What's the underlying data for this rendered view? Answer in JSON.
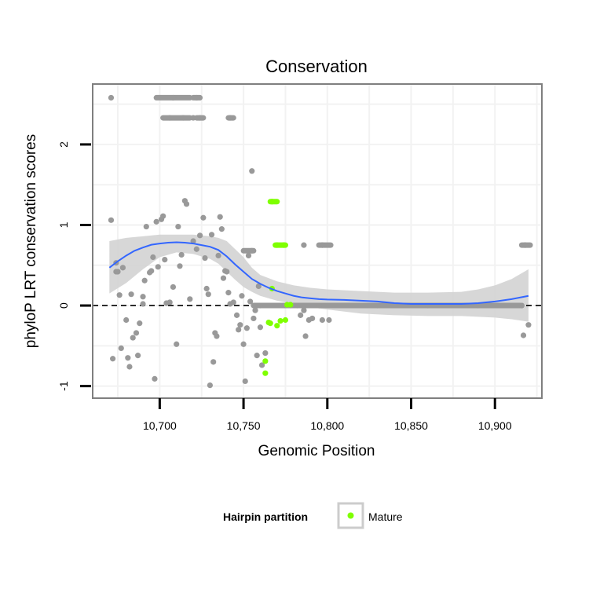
{
  "chart_data": {
    "type": "scatter",
    "title": "Conservation",
    "xlabel": "Genomic Position",
    "ylabel": "phyloP LRT conservation scores",
    "xlim": [
      10660,
      10928
    ],
    "ylim": [
      -1.15,
      2.75
    ],
    "x_ticks": [
      10700,
      10750,
      10800,
      10850,
      10900
    ],
    "x_tick_labels": [
      "10,700",
      "10,750",
      "10,800",
      "10,850",
      "10,900"
    ],
    "y_ticks": [
      -1,
      0,
      1,
      2
    ],
    "y_tick_labels": [
      "-1",
      "0",
      "1",
      "2"
    ],
    "reference_line_y": 0,
    "legend": {
      "title": "Hairpin partition",
      "entries": [
        {
          "label": "Mature",
          "color": "#7fff00"
        }
      ]
    },
    "colors": {
      "other": "#999999",
      "mature": "#7fff00",
      "smooth": "#3366ff",
      "band": "#d3d3d3",
      "panel_border": "#7f7f7f",
      "grid": "#f2f2f2"
    },
    "series": [
      {
        "name": "Other",
        "points": [
          [
            10671,
            2.58
          ],
          [
            10671,
            1.06
          ],
          [
            10672,
            -0.66
          ],
          [
            10674,
            0.53
          ],
          [
            10675,
            0.42
          ],
          [
            10674,
            0.42
          ],
          [
            10676,
            0.13
          ],
          [
            10677,
            -0.53
          ],
          [
            10678,
            0.47
          ],
          [
            10680,
            -0.18
          ],
          [
            10681,
            -0.65
          ],
          [
            10682,
            -0.76
          ],
          [
            10683,
            0.14
          ],
          [
            10684,
            -0.4
          ],
          [
            10686,
            -0.34
          ],
          [
            10687,
            -0.62
          ],
          [
            10688,
            -0.22
          ],
          [
            10690,
            0.02
          ],
          [
            10690,
            0.11
          ],
          [
            10691,
            0.31
          ],
          [
            10692,
            0.98
          ],
          [
            10694,
            0.41
          ],
          [
            10695,
            0.43
          ],
          [
            10696,
            0.6
          ],
          [
            10697,
            -0.91
          ],
          [
            10698,
            1.04
          ],
          [
            10699,
            0.48
          ],
          [
            10701,
            1.07
          ],
          [
            10702,
            1.11
          ],
          [
            10703,
            0.57
          ],
          [
            10704,
            0.03
          ],
          [
            10706,
            0.04
          ],
          [
            10708,
            0.23
          ],
          [
            10710,
            -0.48
          ],
          [
            10711,
            0.98
          ],
          [
            10712,
            0.49
          ],
          [
            10713,
            0.63
          ],
          [
            10715,
            1.3
          ],
          [
            10716,
            1.26
          ],
          [
            10718,
            0.08
          ],
          [
            10720,
            0.8
          ],
          [
            10722,
            0.7
          ],
          [
            10724,
            0.87
          ],
          [
            10726,
            1.09
          ],
          [
            10727,
            0.59
          ],
          [
            10728,
            0.21
          ],
          [
            10729,
            0.14
          ],
          [
            10730,
            -0.99
          ],
          [
            10731,
            0.88
          ],
          [
            10732,
            -0.7
          ],
          [
            10733,
            -0.34
          ],
          [
            10734,
            -0.38
          ],
          [
            10735,
            0.62
          ],
          [
            10736,
            1.1
          ],
          [
            10737,
            0.95
          ],
          [
            10738,
            0.34
          ],
          [
            10739,
            0.43
          ],
          [
            10740,
            0.42
          ],
          [
            10741,
            0.16
          ],
          [
            10742,
            0.02
          ],
          [
            10744,
            0.04
          ],
          [
            10746,
            -0.12
          ],
          [
            10747,
            -0.3
          ],
          [
            10748,
            -0.24
          ],
          [
            10749,
            0.12
          ],
          [
            10750,
            -0.48
          ],
          [
            10751,
            -0.94
          ],
          [
            10752,
            -0.28
          ],
          [
            10753,
            0.62
          ],
          [
            10754,
            0.05
          ],
          [
            10755,
            1.67
          ],
          [
            10756,
            -0.16
          ],
          [
            10757,
            -0.06
          ],
          [
            10758,
            -0.62
          ],
          [
            10759,
            0.24
          ],
          [
            10760,
            -0.27
          ],
          [
            10761,
            -0.74
          ],
          [
            10763,
            -0.59
          ],
          [
            10782,
            0.0
          ],
          [
            10784,
            -0.12
          ],
          [
            10786,
            -0.06
          ],
          [
            10787,
            -0.38
          ],
          [
            10789,
            -0.18
          ],
          [
            10791,
            -0.16
          ],
          [
            10795,
            0.0
          ],
          [
            10797,
            -0.18
          ],
          [
            10801,
            -0.18
          ],
          [
            10916,
            0.0
          ],
          [
            10917,
            -0.37
          ],
          [
            10920,
            -0.24
          ],
          [
            10708,
            2.58
          ],
          [
            10722,
            2.58
          ],
          [
            10706,
            2.33
          ],
          [
            10714,
            2.33
          ],
          [
            10720,
            2.33
          ],
          [
            10724,
            2.33
          ],
          [
            10742,
            2.33
          ],
          [
            10755,
            0.68
          ],
          [
            10786,
            0.75
          ],
          [
            10797,
            0.75
          ],
          [
            10918,
            0.75
          ],
          [
            10760,
            0.0
          ],
          [
            10778,
            0.0
          ],
          [
            10830,
            0.0
          ],
          [
            10860,
            0.0
          ],
          [
            10890,
            0.0
          ]
        ]
      },
      {
        "name": "Mature",
        "points": [
          [
            10763,
            -0.69
          ],
          [
            10763,
            -0.84
          ],
          [
            10765,
            -0.21
          ],
          [
            10766,
            -0.22
          ],
          [
            10767,
            0.21
          ],
          [
            10770,
            -0.25
          ],
          [
            10772,
            -0.19
          ],
          [
            10775,
            -0.18
          ],
          [
            10776,
            0.01
          ],
          [
            10778,
            0.01
          ],
          [
            10767,
            1.29
          ],
          [
            10770,
            0.75
          ],
          [
            10774,
            0.75
          ]
        ]
      },
      {
        "name": "Other runs",
        "runs": [
          {
            "x1": 10698,
            "x2": 10718,
            "y": 2.58
          },
          {
            "x1": 10720,
            "x2": 10724,
            "y": 2.58
          },
          {
            "x1": 10702,
            "x2": 10718,
            "y": 2.33
          },
          {
            "x1": 10722,
            "x2": 10726,
            "y": 2.33
          },
          {
            "x1": 10741,
            "x2": 10744,
            "y": 2.33
          },
          {
            "x1": 10750,
            "x2": 10756,
            "y": 0.68
          },
          {
            "x1": 10795,
            "x2": 10802,
            "y": 0.75
          },
          {
            "x1": 10916,
            "x2": 10921,
            "y": 0.75
          },
          {
            "x1": 10756,
            "x2": 10915,
            "y": 0.0
          }
        ]
      },
      {
        "name": "Mature runs",
        "runs": [
          {
            "x1": 10766,
            "x2": 10770,
            "y": 1.29
          },
          {
            "x1": 10769,
            "x2": 10775,
            "y": 0.75
          }
        ]
      },
      {
        "name": "Smooth fit",
        "line": [
          [
            10670,
            0.47
          ],
          [
            10675,
            0.55
          ],
          [
            10680,
            0.62
          ],
          [
            10685,
            0.68
          ],
          [
            10690,
            0.72
          ],
          [
            10695,
            0.755
          ],
          [
            10700,
            0.77
          ],
          [
            10705,
            0.78
          ],
          [
            10710,
            0.785
          ],
          [
            10715,
            0.78
          ],
          [
            10720,
            0.77
          ],
          [
            10725,
            0.75
          ],
          [
            10730,
            0.73
          ],
          [
            10735,
            0.69
          ],
          [
            10740,
            0.61
          ],
          [
            10745,
            0.51
          ],
          [
            10750,
            0.42
          ],
          [
            10755,
            0.33
          ],
          [
            10760,
            0.27
          ],
          [
            10765,
            0.22
          ],
          [
            10770,
            0.18
          ],
          [
            10775,
            0.15
          ],
          [
            10780,
            0.12
          ],
          [
            10785,
            0.1
          ],
          [
            10790,
            0.09
          ],
          [
            10795,
            0.08
          ],
          [
            10800,
            0.075
          ],
          [
            10810,
            0.07
          ],
          [
            10820,
            0.06
          ],
          [
            10830,
            0.05
          ],
          [
            10840,
            0.03
          ],
          [
            10850,
            0.02
          ],
          [
            10860,
            0.02
          ],
          [
            10870,
            0.02
          ],
          [
            10880,
            0.02
          ],
          [
            10890,
            0.03
          ],
          [
            10900,
            0.05
          ],
          [
            10910,
            0.08
          ],
          [
            10920,
            0.12
          ]
        ],
        "band_upper": [
          [
            10670,
            0.8
          ],
          [
            10680,
            0.84
          ],
          [
            10690,
            0.86
          ],
          [
            10700,
            0.88
          ],
          [
            10710,
            0.88
          ],
          [
            10720,
            0.88
          ],
          [
            10730,
            0.86
          ],
          [
            10735,
            0.84
          ],
          [
            10740,
            0.8
          ],
          [
            10745,
            0.7
          ],
          [
            10750,
            0.6
          ],
          [
            10755,
            0.47
          ],
          [
            10760,
            0.38
          ],
          [
            10770,
            0.3
          ],
          [
            10780,
            0.25
          ],
          [
            10790,
            0.22
          ],
          [
            10800,
            0.2
          ],
          [
            10820,
            0.18
          ],
          [
            10840,
            0.16
          ],
          [
            10860,
            0.16
          ],
          [
            10880,
            0.17
          ],
          [
            10890,
            0.2
          ],
          [
            10900,
            0.25
          ],
          [
            10910,
            0.33
          ],
          [
            10920,
            0.45
          ]
        ],
        "band_lower": [
          [
            10670,
            0.15
          ],
          [
            10680,
            0.28
          ],
          [
            10690,
            0.45
          ],
          [
            10700,
            0.6
          ],
          [
            10710,
            0.66
          ],
          [
            10720,
            0.64
          ],
          [
            10730,
            0.58
          ],
          [
            10735,
            0.52
          ],
          [
            10740,
            0.42
          ],
          [
            10745,
            0.32
          ],
          [
            10750,
            0.23
          ],
          [
            10755,
            0.17
          ],
          [
            10760,
            0.12
          ],
          [
            10770,
            0.06
          ],
          [
            10780,
            0.02
          ],
          [
            10790,
            -0.02
          ],
          [
            10800,
            -0.05
          ],
          [
            10820,
            -0.1
          ],
          [
            10840,
            -0.12
          ],
          [
            10860,
            -0.13
          ],
          [
            10880,
            -0.13
          ],
          [
            10890,
            -0.14
          ],
          [
            10900,
            -0.15
          ],
          [
            10910,
            -0.17
          ],
          [
            10920,
            -0.2
          ]
        ]
      }
    ]
  }
}
